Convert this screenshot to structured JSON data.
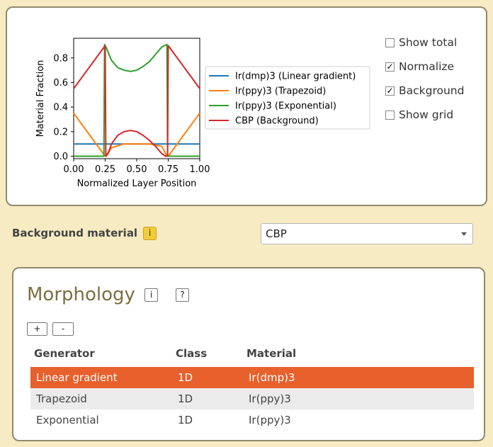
{
  "plot": {
    "y_axis_label": "Material Fraction",
    "x_axis_label": "Normalized Layer Position",
    "y_ticks": [
      "0.0",
      "0.2",
      "0.4",
      "0.6",
      "0.8"
    ],
    "x_ticks": [
      "0.00",
      "0.25",
      "0.50",
      "0.75",
      "1.00"
    ],
    "legend": [
      {
        "label": "Ir(dmp)3 (Linear gradient)",
        "color": "#1f77b4"
      },
      {
        "label": "Ir(ppy)3 (Trapezoid)",
        "color": "#ff7f0e"
      },
      {
        "label": "Ir(ppy)3 (Exponential)",
        "color": "#2ca02c"
      },
      {
        "label": "CBP (Background)",
        "color": "#d62728"
      }
    ]
  },
  "options": [
    {
      "label": "Show total",
      "checked": false
    },
    {
      "label": "Normalize",
      "checked": true
    },
    {
      "label": "Background",
      "checked": true
    },
    {
      "label": "Show grid",
      "checked": false
    }
  ],
  "background": {
    "label": "Background material",
    "info": "i",
    "selected": "CBP"
  },
  "morphology": {
    "title": "Morphology",
    "info": "i",
    "help": "?",
    "add": "+",
    "remove": "-",
    "columns": [
      "Generator",
      "Class",
      "Material"
    ],
    "rows": [
      {
        "generator": "Linear gradient",
        "class": "1D",
        "material": "Ir(dmp)3"
      },
      {
        "generator": "Trapezoid",
        "class": "1D",
        "material": "Ir(ppy)3"
      },
      {
        "generator": "Exponential",
        "class": "1D",
        "material": "Ir(ppy)3"
      }
    ]
  },
  "chart_data": {
    "type": "line",
    "xlabel": "Normalized Layer Position",
    "ylabel": "Material Fraction",
    "xlim": [
      0,
      1
    ],
    "ylim": [
      -0.02,
      0.96
    ],
    "grid": false,
    "legend_position": "right",
    "series": [
      {
        "name": "Ir(dmp)3 (Linear gradient)",
        "color": "#1f77b4",
        "x": [
          0,
          0.25,
          0.45,
          0.7,
          0.75,
          1.0
        ],
        "y": [
          0.1,
          0.1,
          0.1,
          0.1,
          0.1,
          0.1
        ]
      },
      {
        "name": "Ir(ppy)3 (Trapezoid)",
        "color": "#ff7f0e",
        "x": [
          0,
          0.25,
          0.26,
          0.3,
          0.4,
          0.5,
          0.6,
          0.7,
          0.74,
          0.75,
          1.0
        ],
        "y": [
          0.35,
          0.0,
          0.0,
          0.07,
          0.1,
          0.1,
          0.1,
          0.08,
          0.0,
          0.0,
          0.35
        ]
      },
      {
        "name": "Ir(ppy)3 (Exponential)",
        "color": "#2ca02c",
        "x": [
          0,
          0.24,
          0.245,
          0.26,
          0.3,
          0.35,
          0.4,
          0.45,
          0.5,
          0.55,
          0.6,
          0.65,
          0.7,
          0.74,
          0.745,
          0.76,
          1.0
        ],
        "y": [
          0.0,
          0.0,
          0.91,
          0.88,
          0.78,
          0.72,
          0.7,
          0.69,
          0.7,
          0.73,
          0.77,
          0.83,
          0.89,
          0.91,
          0.0,
          0.0,
          0.0
        ]
      },
      {
        "name": "CBP (Background)",
        "color": "#d62728",
        "x": [
          0,
          0.25,
          0.255,
          0.28,
          0.3,
          0.35,
          0.4,
          0.45,
          0.5,
          0.55,
          0.6,
          0.65,
          0.7,
          0.73,
          0.745,
          0.75,
          1.0
        ],
        "y": [
          0.55,
          0.9,
          0.0,
          0.04,
          0.1,
          0.17,
          0.2,
          0.21,
          0.2,
          0.17,
          0.13,
          0.08,
          0.02,
          0.0,
          0.0,
          0.9,
          0.55
        ]
      }
    ]
  }
}
